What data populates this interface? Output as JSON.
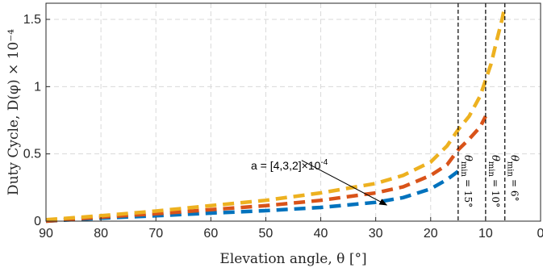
{
  "chart_data": {
    "type": "line",
    "xlabel": "Elevation angle, θ [°]",
    "ylabel": "Duty Cycle, D(φ) × 10⁻⁴",
    "xlim": [
      90,
      0
    ],
    "ylim": [
      0,
      1.62
    ],
    "x_reversed": true,
    "grid": true,
    "xticks": [
      "90",
      "80",
      "70",
      "60",
      "50",
      "40",
      "30",
      "20",
      "10",
      "0"
    ],
    "yticks": [
      "0",
      "0.5",
      "1",
      "1.5"
    ],
    "series": [
      {
        "color": "#0072BD",
        "x": [
          90,
          80,
          70,
          60,
          50,
          40,
          30,
          25,
          20,
          17,
          15
        ],
        "values": [
          0.0,
          0.022,
          0.04,
          0.06,
          0.078,
          0.102,
          0.14,
          0.175,
          0.24,
          0.31,
          0.37
        ]
      },
      {
        "color": "#D95319",
        "x": [
          90,
          80,
          70,
          60,
          50,
          40,
          30,
          25,
          20,
          17,
          15,
          13,
          11,
          10
        ],
        "values": [
          0.0,
          0.03,
          0.055,
          0.085,
          0.115,
          0.155,
          0.21,
          0.255,
          0.34,
          0.42,
          0.53,
          0.61,
          0.7,
          0.78
        ]
      },
      {
        "color": "#EDB120",
        "x": [
          90,
          80,
          70,
          60,
          50,
          40,
          30,
          25,
          20,
          17,
          15,
          13,
          11,
          10,
          9,
          8,
          7,
          6.5
        ],
        "values": [
          0.01,
          0.04,
          0.075,
          0.115,
          0.155,
          0.21,
          0.28,
          0.34,
          0.44,
          0.56,
          0.68,
          0.78,
          0.93,
          1.05,
          1.17,
          1.34,
          1.5,
          1.6
        ]
      }
    ],
    "vlines": [
      {
        "x": 15,
        "label_main": "θ",
        "label_sub": "min",
        "label_rest": "= 15°"
      },
      {
        "x": 10,
        "label_main": "θ",
        "label_sub": "min",
        "label_rest": "= 10°"
      },
      {
        "x": 6.5,
        "label_main": "θ",
        "label_sub": "min",
        "label_rest": "= 6°"
      }
    ],
    "annotation": {
      "text": "a = [4,3,2]×10",
      "sup": "-4",
      "arrow_from": [
        42,
        0.5
      ],
      "arrow_to": [
        28,
        0.12
      ]
    }
  }
}
